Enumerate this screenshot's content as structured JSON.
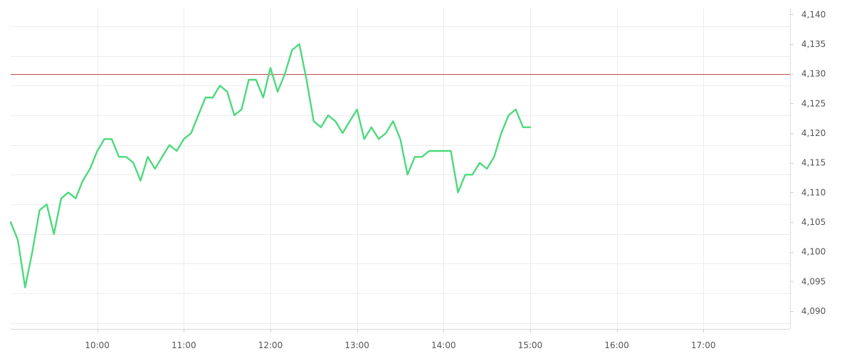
{
  "chart_data": {
    "type": "line",
    "title": "",
    "xlabel": "",
    "ylabel": "",
    "x_tick_labels": [
      "10:00",
      "11:00",
      "12:00",
      "13:00",
      "14:00",
      "15:00",
      "16:00",
      "17:00"
    ],
    "y_tick_labels": [
      "4,090",
      "4,095",
      "4,100",
      "4,105",
      "4,110",
      "4,115",
      "4,120",
      "4,125",
      "4,130",
      "4,135",
      "4,140"
    ],
    "y_axis_side": "right",
    "xlim": [
      "09:00",
      "18:00"
    ],
    "ylim": [
      4087,
      4141
    ],
    "grid": true,
    "reference_line": {
      "value": 4130,
      "color": "#c0504d"
    },
    "series": [
      {
        "color": "#4cd97b",
        "x": [
          "09:00",
          "09:05",
          "09:10",
          "09:15",
          "09:20",
          "09:25",
          "09:30",
          "09:35",
          "09:40",
          "09:45",
          "09:50",
          "09:55",
          "10:00",
          "10:05",
          "10:10",
          "10:15",
          "10:20",
          "10:25",
          "10:30",
          "10:35",
          "10:40",
          "10:45",
          "10:50",
          "10:55",
          "11:00",
          "11:05",
          "11:10",
          "11:15",
          "11:20",
          "11:25",
          "11:30",
          "11:35",
          "11:40",
          "11:45",
          "11:50",
          "11:55",
          "12:00",
          "12:05",
          "12:10",
          "12:15",
          "12:20",
          "12:25",
          "12:30",
          "12:35",
          "12:40",
          "12:45",
          "12:50",
          "12:55",
          "13:00",
          "13:05",
          "13:10",
          "13:15",
          "13:20",
          "13:25",
          "13:30",
          "13:35",
          "13:40",
          "13:45",
          "13:50",
          "13:55",
          "14:00",
          "14:05",
          "14:10",
          "14:15",
          "14:20",
          "14:25",
          "14:30",
          "14:35",
          "14:40",
          "14:45",
          "14:50",
          "14:55",
          "15:00"
        ],
        "y": [
          4105,
          4102,
          4094,
          4100,
          4107,
          4108,
          4103,
          4109,
          4110,
          4109,
          4112,
          4114,
          4117,
          4119,
          4119,
          4116,
          4116,
          4115,
          4112,
          4116,
          4114,
          4116,
          4118,
          4117,
          4119,
          4120,
          4123,
          4126,
          4126,
          4128,
          4127,
          4123,
          4124,
          4129,
          4129,
          4126,
          4131,
          4127,
          4130,
          4134,
          4135,
          4129,
          4122,
          4121,
          4123,
          4122,
          4120,
          4122,
          4124,
          4119,
          4121,
          4119,
          4120,
          4122,
          4119,
          4113,
          4116,
          4116,
          4117,
          4117,
          4117,
          4117,
          4110,
          4113,
          4113,
          4115,
          4114,
          4116,
          4120,
          4123,
          4124,
          4121,
          4121
        ]
      }
    ]
  }
}
